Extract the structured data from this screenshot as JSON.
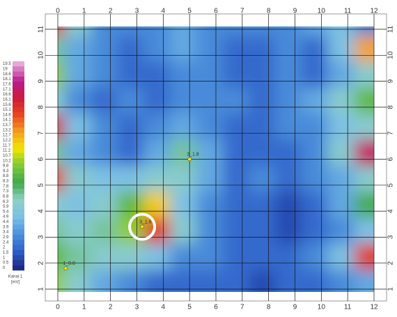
{
  "chart_data": {
    "type": "heatmap",
    "xticks": [
      0,
      1,
      2,
      3,
      4,
      5,
      6,
      7,
      8,
      9,
      10,
      11,
      12
    ],
    "yticks": [
      1,
      2,
      3,
      4,
      5,
      6,
      7,
      8,
      9,
      10,
      11
    ],
    "xlim": [
      0,
      12
    ],
    "ylim": [
      1,
      11
    ],
    "grid": true,
    "y_rows": [
      11,
      10,
      9,
      8,
      7,
      6,
      5,
      4,
      3,
      2,
      1
    ],
    "z": [
      [
        15,
        6,
        3,
        3,
        3,
        4,
        3,
        3,
        3,
        3,
        4,
        5,
        3
      ],
      [
        7,
        4,
        3,
        2,
        3,
        4,
        3,
        2,
        2,
        3,
        2,
        5,
        13
      ],
      [
        10,
        4,
        3,
        2,
        2,
        3,
        3,
        2,
        2,
        3,
        2,
        4,
        6
      ],
      [
        6,
        3,
        2,
        3,
        2,
        3,
        3,
        3,
        2,
        3,
        4,
        6,
        9
      ],
      [
        16,
        5,
        3,
        2,
        3,
        4,
        3,
        2,
        2,
        3,
        3,
        5,
        6
      ],
      [
        7,
        4,
        3,
        2,
        4,
        7,
        4,
        2,
        2,
        2,
        3,
        6,
        17
      ],
      [
        15,
        6,
        5,
        5,
        6,
        6,
        4,
        2,
        3,
        2,
        3,
        4,
        6
      ],
      [
        6,
        5,
        6,
        9,
        12,
        5,
        3,
        2,
        2,
        1,
        2,
        4,
        8
      ],
      [
        7,
        6,
        7,
        10,
        15,
        6,
        3,
        2,
        2,
        1,
        2,
        3,
        5
      ],
      [
        9,
        7,
        6,
        6,
        5,
        3,
        3,
        2,
        2,
        2,
        3,
        5,
        15
      ],
      [
        10,
        6,
        4,
        3,
        2,
        2,
        2,
        2,
        1,
        2,
        2,
        3,
        4
      ]
    ],
    "colormap": [
      "#1e2a8a",
      "#2f5fc8",
      "#4d93dc",
      "#7cc0e6",
      "#8fd0c4",
      "#3fa84a",
      "#7ec83a",
      "#f2e600",
      "#f5a020",
      "#e6461e",
      "#cc1a3c",
      "#b81a8c",
      "#e6a8d8"
    ],
    "colorbar": {
      "title": "Kanal 1",
      "unit": "[mV]",
      "levels": [
        19.5,
        19.0,
        18.6,
        18.1,
        17.6,
        17.1,
        16.6,
        16.1,
        15.6,
        15.1,
        14.6,
        14.1,
        13.7,
        13.2,
        12.7,
        12.2,
        11.7,
        11.2,
        10.7,
        10.2,
        9.8,
        9.3,
        8.8,
        8.3,
        7.8,
        7.3,
        6.8,
        6.3,
        5.9,
        5.4,
        4.9,
        4.4,
        3.9,
        3.4,
        2.9,
        2.4,
        2.0,
        1.5,
        1.0,
        0.5,
        0.0
      ]
    },
    "points": [
      {
        "label": "3_1.6",
        "x": 3.2,
        "y": 3.4,
        "highlight": true
      },
      {
        "label": "3_1.8",
        "x": 5.0,
        "y": 6.0,
        "highlight": false
      },
      {
        "label": "1_0.0",
        "x": 0.3,
        "y": 1.8,
        "highlight": false
      }
    ]
  }
}
